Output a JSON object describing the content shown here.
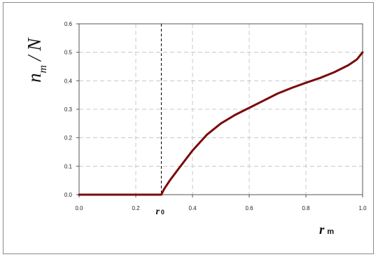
{
  "chart_data": {
    "type": "line",
    "xlabel": {
      "main": "r",
      "sub": "m"
    },
    "ylabel": {
      "main": "n",
      "sub": "m",
      "rest": "/ N"
    },
    "xlim": [
      0,
      1
    ],
    "ylim": [
      0,
      0.6
    ],
    "x_ticks": [
      "0.0",
      "0.2",
      "0.4",
      "0.6",
      "0.8",
      "1.0"
    ],
    "y_ticks": [
      "0.0",
      "0.1",
      "0.2",
      "0.3",
      "0.4",
      "0.5",
      "0.6"
    ],
    "grid": true,
    "annotation": {
      "x": 0.29,
      "label": "r",
      "sub": "0",
      "style": "dashed-vertical"
    },
    "series": [
      {
        "color": "#7a0a0a",
        "x": [
          0.0,
          0.1,
          0.2,
          0.29,
          0.3,
          0.32,
          0.35,
          0.4,
          0.45,
          0.5,
          0.55,
          0.6,
          0.65,
          0.7,
          0.75,
          0.8,
          0.85,
          0.9,
          0.95,
          0.98,
          1.0
        ],
        "y": [
          0.0,
          0.0,
          0.0,
          0.0,
          0.02,
          0.05,
          0.09,
          0.155,
          0.21,
          0.25,
          0.28,
          0.305,
          0.33,
          0.355,
          0.375,
          0.393,
          0.41,
          0.43,
          0.455,
          0.475,
          0.5
        ]
      }
    ]
  }
}
